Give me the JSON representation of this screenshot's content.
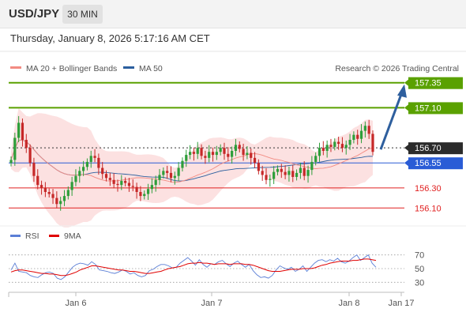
{
  "header": {
    "symbol": "USD/JPY",
    "interval": "30 MIN",
    "timestamp": "Thursday, January 8, 2026 5:17:16 AM CET"
  },
  "legend": {
    "items": [
      {
        "label": "MA 20 + Bollinger Bands",
        "color": "#f28b82"
      },
      {
        "label": "MA 50",
        "color": "#2b5f9e"
      }
    ],
    "credit": "Research © 2026 Trading Central"
  },
  "rsi_legend": {
    "items": [
      {
        "label": "RSI",
        "color": "#5b7fd6"
      },
      {
        "label": "9MA",
        "color": "#e00000"
      }
    ]
  },
  "x_axis": {
    "labels": [
      "Jan 6",
      "Jan 7",
      "Jan 8",
      "Jan 17"
    ]
  },
  "chart_data": {
    "type": "candlestick",
    "price_axis": {
      "ylim": [
        156.0,
        157.45
      ]
    },
    "levels": [
      {
        "value": 157.35,
        "label": "157.35",
        "kind": "resistance",
        "color": "#5aa100"
      },
      {
        "value": 157.1,
        "label": "157.10",
        "kind": "resistance",
        "color": "#5aa100"
      },
      {
        "value": 156.7,
        "label": "156.70",
        "kind": "pivot",
        "color": "#333333"
      },
      {
        "value": 156.55,
        "label": "156.55",
        "kind": "support",
        "color": "#2a5cd6"
      },
      {
        "value": 156.3,
        "label": "156.30",
        "kind": "support",
        "color": "#e02020"
      },
      {
        "value": 156.1,
        "label": "156.10",
        "kind": "support",
        "color": "#e02020"
      }
    ],
    "forecast": {
      "from": 156.7,
      "to": 157.35,
      "direction": "up"
    },
    "price_series": [
      156.58,
      156.8,
      156.95,
      156.78,
      156.7,
      156.55,
      156.42,
      156.33,
      156.3,
      156.26,
      156.24,
      156.2,
      156.14,
      156.17,
      156.22,
      156.28,
      156.36,
      156.42,
      156.47,
      156.51,
      156.56,
      156.62,
      156.6,
      156.5,
      156.44,
      156.4,
      156.38,
      156.34,
      156.33,
      156.37,
      156.35,
      156.32,
      156.31,
      156.26,
      156.22,
      156.24,
      156.29,
      156.33,
      156.38,
      156.43,
      156.47,
      156.45,
      156.4,
      156.42,
      156.5,
      156.57,
      156.63,
      156.66,
      156.64,
      156.7,
      156.62,
      156.6,
      156.66,
      156.63,
      156.66,
      156.7,
      156.64,
      156.61,
      156.67,
      156.73,
      156.69,
      156.63,
      156.65,
      156.6,
      156.55,
      156.47,
      156.43,
      156.38,
      156.39,
      156.46,
      156.49,
      156.46,
      156.43,
      156.47,
      156.41,
      156.45,
      156.5,
      156.42,
      156.48,
      156.56,
      156.62,
      156.7,
      156.67,
      156.73,
      156.71,
      156.76,
      156.74,
      156.7,
      156.73,
      156.78,
      156.83,
      156.79,
      156.87,
      156.92,
      156.84,
      156.66
    ],
    "rsi": {
      "ylim": [
        20,
        80
      ],
      "ticks": [
        70,
        50,
        30
      ],
      "rsi_series": [
        48,
        58,
        46,
        45,
        44,
        40,
        38,
        37,
        41,
        44,
        45,
        43,
        36,
        34,
        38,
        45,
        52,
        56,
        58,
        57,
        55,
        60,
        56,
        48,
        47,
        46,
        44,
        43,
        45,
        48,
        46,
        42,
        44,
        40,
        38,
        40,
        47,
        49,
        53,
        56,
        56,
        54,
        51,
        52,
        58,
        62,
        66,
        61,
        55,
        63,
        56,
        52,
        57,
        56,
        60,
        62,
        57,
        53,
        58,
        61,
        56,
        52,
        56,
        47,
        41,
        37,
        38,
        36,
        40,
        48,
        54,
        51,
        49,
        52,
        46,
        49,
        54,
        46,
        52,
        58,
        62,
        63,
        60,
        63,
        61,
        65,
        60,
        58,
        61,
        66,
        70,
        62,
        66,
        70,
        58,
        52
      ],
      "ma9_series": [
        45,
        47,
        48,
        48,
        47,
        46,
        45,
        44,
        43,
        43,
        42,
        42,
        41,
        40,
        40,
        41,
        43,
        45,
        48,
        50,
        52,
        54,
        54,
        53,
        52,
        51,
        50,
        49,
        48,
        48,
        47,
        46,
        46,
        45,
        44,
        43,
        43,
        44,
        45,
        46,
        48,
        50,
        51,
        52,
        53,
        55,
        57,
        58,
        58,
        59,
        58,
        58,
        57,
        56,
        57,
        57,
        57,
        56,
        57,
        57,
        57,
        56,
        56,
        55,
        53,
        51,
        49,
        47,
        46,
        46,
        46,
        47,
        48,
        49,
        49,
        49,
        50,
        50,
        50,
        51,
        53,
        55,
        56,
        58,
        59,
        60,
        61,
        61,
        61,
        62,
        62,
        63,
        64,
        64,
        63,
        62
      ]
    }
  }
}
